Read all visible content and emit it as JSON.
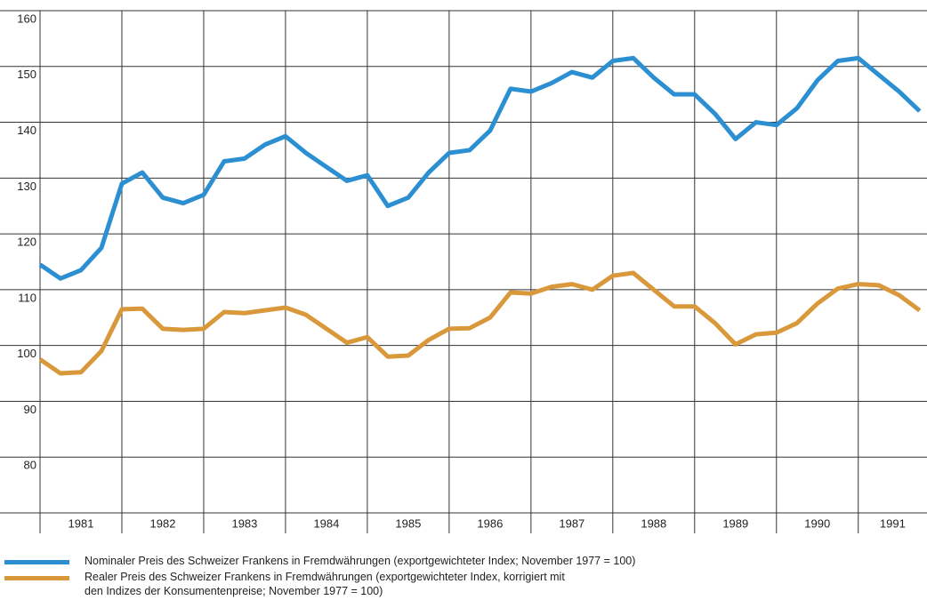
{
  "chart_data": {
    "type": "line",
    "x": [
      1981,
      1981.25,
      1981.5,
      1981.75,
      1982,
      1982.25,
      1982.5,
      1982.75,
      1983,
      1983.25,
      1983.5,
      1983.75,
      1984,
      1984.25,
      1984.5,
      1984.75,
      1985,
      1985.25,
      1985.5,
      1985.75,
      1986,
      1986.25,
      1986.5,
      1986.75,
      1987,
      1987.25,
      1987.5,
      1987.75,
      1988,
      1988.25,
      1988.5,
      1988.75,
      1989,
      1989.25,
      1989.5,
      1989.75,
      1990,
      1990.25,
      1990.5,
      1990.75,
      1991,
      1991.25,
      1991.5,
      1991.75
    ],
    "series": [
      {
        "name": "Nominaler Preis des Schweizer Frankens in Fremdwährungen (exportgewichteter Index; November 1977 = 100)",
        "color": "#2b8fd2",
        "values": [
          114.5,
          112,
          113.5,
          117.5,
          129,
          131,
          126.5,
          125.5,
          127,
          133,
          133.5,
          136,
          137.5,
          134.5,
          132,
          129.5,
          130.5,
          125,
          126.5,
          131,
          134.5,
          135,
          138.5,
          146,
          145.5,
          147,
          149,
          148,
          151,
          151.5,
          148,
          145,
          145,
          141.5,
          137,
          140,
          139.5,
          142.5,
          147.5,
          151,
          151.5,
          148.5,
          145.5,
          142
        ]
      },
      {
        "name": "Realer Preis des Schweizer Frankens in Fremdwährungen (exportgewichteter Index, korrigiert mit\nden Indizes der Konsumentenpreise; November 1977 = 100)",
        "color": "#d9983a",
        "values": [
          97.5,
          95,
          95.2,
          99,
          106.5,
          106.6,
          103,
          102.8,
          103,
          106,
          105.8,
          106.3,
          106.8,
          105.5,
          103,
          100.5,
          101.5,
          98,
          98.2,
          101,
          103,
          103.1,
          105,
          109.5,
          109.3,
          110.5,
          111,
          110,
          112.5,
          113,
          110,
          107,
          107,
          104,
          100.2,
          102,
          102.3,
          104,
          107.5,
          110.2,
          111,
          110.8,
          109,
          106.3
        ]
      }
    ],
    "xlim": [
      1981,
      1991.84
    ],
    "xticks": [
      {
        "value": 1981,
        "label": "1981"
      },
      {
        "value": 1982,
        "label": "1982"
      },
      {
        "value": 1983,
        "label": "1983"
      },
      {
        "value": 1984,
        "label": "1984"
      },
      {
        "value": 1985,
        "label": "1985"
      },
      {
        "value": 1986,
        "label": "1986"
      },
      {
        "value": 1987,
        "label": "1987"
      },
      {
        "value": 1988,
        "label": "1988"
      },
      {
        "value": 1989,
        "label": "1989"
      },
      {
        "value": 1990,
        "label": "1990"
      },
      {
        "value": 1991,
        "label": "1991"
      }
    ],
    "ylim": [
      70,
      160
    ],
    "yticks": [
      80,
      90,
      100,
      110,
      120,
      130,
      140,
      150,
      160
    ],
    "grid": true
  }
}
